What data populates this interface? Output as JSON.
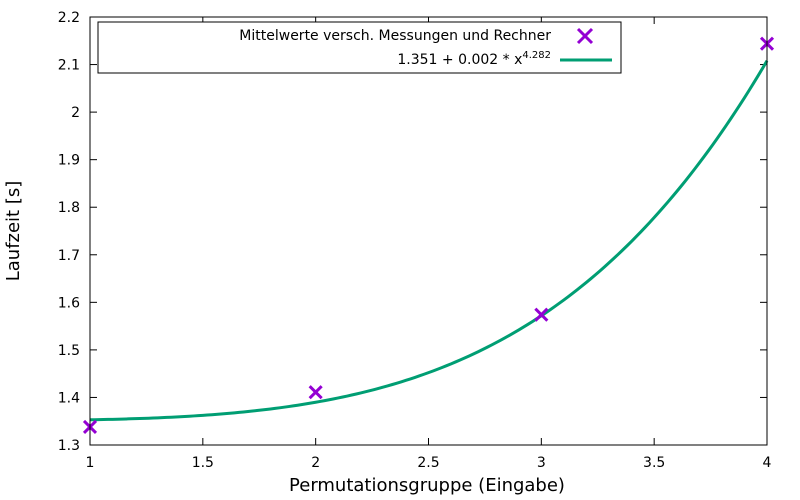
{
  "chart_data": {
    "type": "scatter",
    "xlabel": "Permutationsgruppe (Eingabe)",
    "ylabel": "Laufzeit [s]",
    "xlim": [
      1,
      4
    ],
    "ylim": [
      1.3,
      2.2
    ],
    "x_ticks": [
      1,
      1.5,
      2,
      2.5,
      3,
      3.5,
      4
    ],
    "x_tick_labels": [
      "1",
      "1.5",
      "2",
      "2.5",
      "3",
      "3.5",
      "4"
    ],
    "y_ticks": [
      1.3,
      1.4,
      1.5,
      1.6,
      1.7,
      1.8,
      1.9,
      2.0,
      2.1,
      2.2
    ],
    "y_tick_labels": [
      "1.3",
      "1.4",
      "1.5",
      "1.6",
      "1.7",
      "1.8",
      "1.9",
      "2",
      "2.1",
      "2.2"
    ],
    "grid": false,
    "legend_position": "top",
    "series": [
      {
        "name": "Mittelwerte versch. Messungen und Rechner",
        "kind": "points",
        "marker": "x",
        "color": "#9400D3",
        "x": [
          1,
          2,
          3,
          4
        ],
        "y": [
          1.338,
          1.411,
          1.574,
          2.144
        ]
      },
      {
        "name_base": "1.351 + 0.002 * x",
        "name_exponent": "4.282",
        "kind": "fit_line",
        "color": "#009E73",
        "formula": {
          "a": 1.351,
          "b": 0.002,
          "p": 4.282
        }
      }
    ]
  }
}
